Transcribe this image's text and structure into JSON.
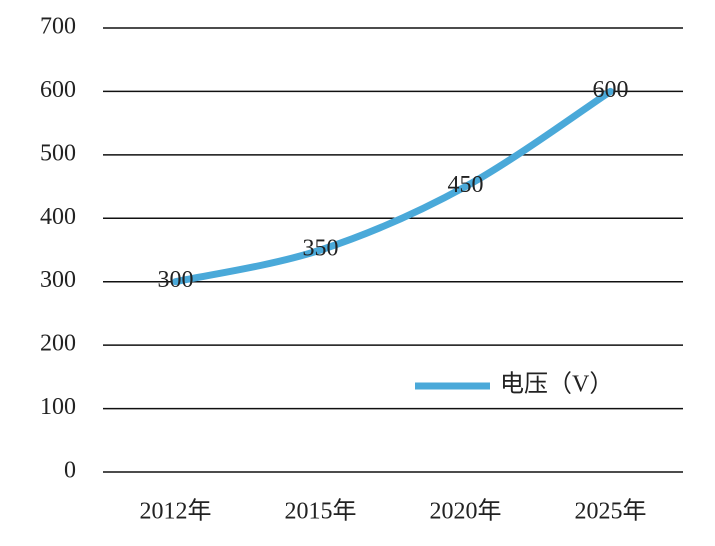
{
  "chart_data": {
    "type": "line",
    "categories": [
      "2012年",
      "2015年",
      "2020年",
      "2025年"
    ],
    "series": [
      {
        "name": "电压（V）",
        "color": "#4aa9d9",
        "values": [
          300,
          350,
          450,
          600
        ]
      }
    ],
    "ylim": [
      0,
      700
    ],
    "yticks": [
      0,
      100,
      200,
      300,
      400,
      500,
      600,
      700
    ],
    "grid": true,
    "legend": "lower-right",
    "data_labels": true
  }
}
